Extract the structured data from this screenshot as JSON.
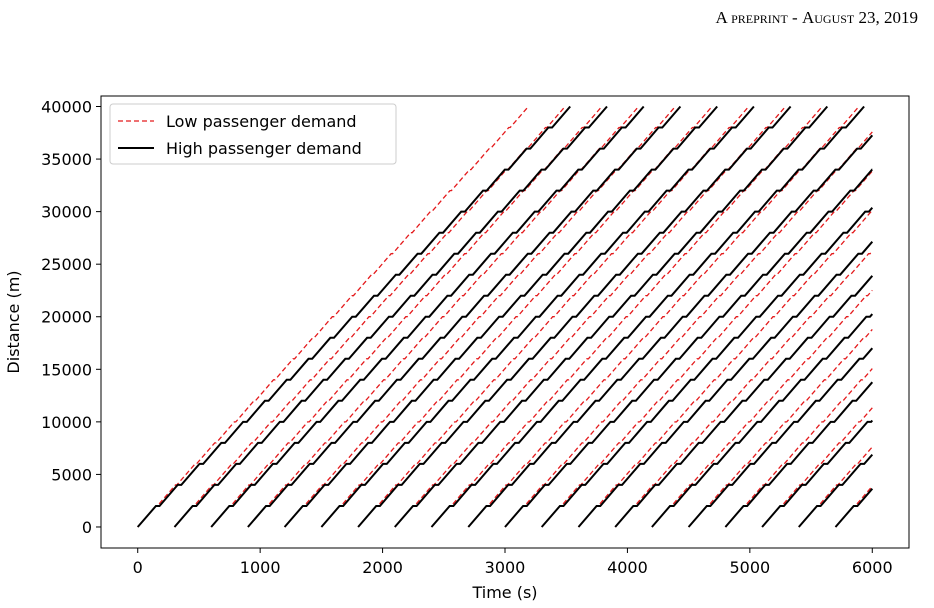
{
  "page_header": {
    "label": "A preprint",
    "separator": " - ",
    "date": "August 23, 2019"
  },
  "chart_data": {
    "type": "line",
    "title": "",
    "xlabel": "Time (s)",
    "ylabel": "Distance (m)",
    "xlim": [
      -300,
      6300
    ],
    "ylim": [
      -2000,
      41000
    ],
    "xticks": [
      0,
      1000,
      2000,
      3000,
      4000,
      5000,
      6000
    ],
    "yticks": [
      0,
      5000,
      10000,
      15000,
      20000,
      25000,
      30000,
      35000,
      40000
    ],
    "grid": false,
    "legend_position": "top-left",
    "stop_spacing_m": 2000,
    "series": [
      {
        "name": "Low passenger demand",
        "style": "dashed",
        "color": "#e41a1c",
        "vehicle_departures_s": [
          0,
          300,
          600,
          900,
          1200,
          1500,
          1800,
          2100,
          2400,
          2700,
          3000,
          3300,
          3600,
          3900,
          4200,
          4500,
          4800,
          5100,
          5400,
          5700
        ],
        "dwell_per_stop_s": 12,
        "cruise_speed_mps": 13.5
      },
      {
        "name": "High passenger demand",
        "style": "solid",
        "color": "#000000",
        "vehicle_departures_s": [
          0,
          300,
          600,
          900,
          1200,
          1500,
          1800,
          2100,
          2400,
          2700,
          3000,
          3300,
          3600,
          3900,
          4200,
          4500,
          4800,
          5100,
          5400,
          5700
        ],
        "dwell_per_stop_s": 30,
        "cruise_speed_mps": 13.5
      }
    ]
  }
}
